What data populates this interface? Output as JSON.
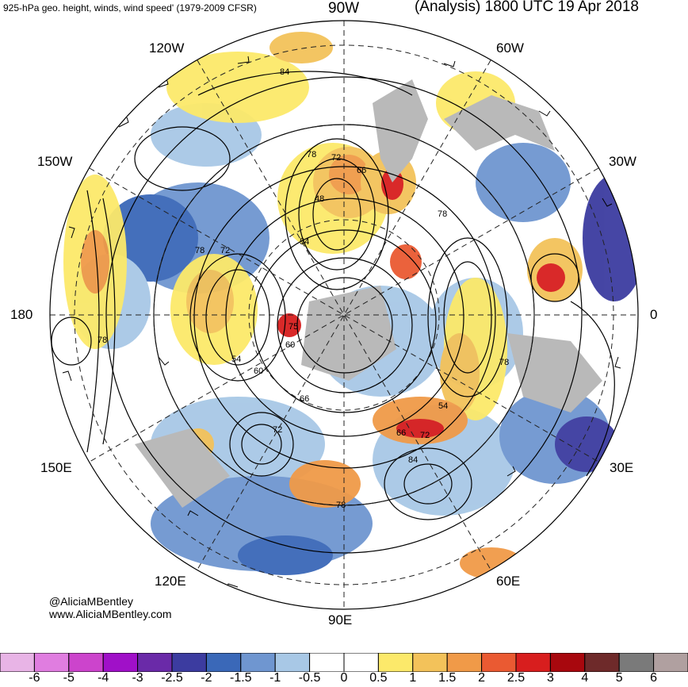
{
  "header": {
    "left_title": "925-hPa geo. height, winds, wind speed' (1979-2009 CFSR)",
    "right_title": "(Analysis) 1800 UTC 19 Apr 2018"
  },
  "longitude_labels": {
    "w90": "90W",
    "w120": "120W",
    "w60": "60W",
    "w150": "150W",
    "w30": "30W",
    "d180": "180",
    "d0": "0",
    "e150": "150E",
    "e30": "30E",
    "e120": "120E",
    "e60": "60E",
    "e90": "90E"
  },
  "contour_labels": [
    "84",
    "78",
    "72",
    "66",
    "48",
    "54",
    "78",
    "72",
    "78",
    "78",
    "54",
    "60",
    "66",
    "72",
    "60",
    "66",
    "72",
    "54",
    "78",
    "84",
    "78",
    "75"
  ],
  "credit": {
    "handle": "@AliciaMBentley",
    "site": "www.AliciaMBentley.com"
  },
  "colorbar": {
    "colors": [
      "#e8b4e6",
      "#e07de0",
      "#cc44cc",
      "#a010c8",
      "#6a2aa8",
      "#3c3ca0",
      "#3a68b8",
      "#6f96d0",
      "#a8c8e6",
      "#ffffff",
      "#ffffff",
      "#fce96a",
      "#f3c25a",
      "#f09a48",
      "#ea5a32",
      "#d81e1e",
      "#a8080e",
      "#6e2a2a",
      "#7a7a7a",
      "#b0a0a0"
    ],
    "tick_labels": [
      "-6",
      "-5",
      "-4",
      "-3",
      "-2.5",
      "-2",
      "-1.5",
      "-1",
      "-0.5",
      "0",
      "0.5",
      "1",
      "1.5",
      "2",
      "2.5",
      "3",
      "4",
      "5",
      "6"
    ]
  }
}
